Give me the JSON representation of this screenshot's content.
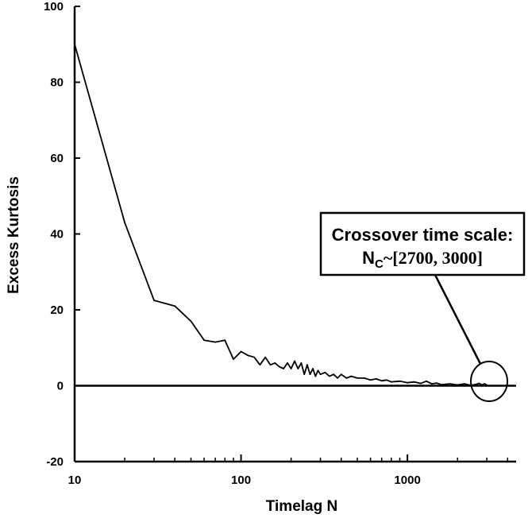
{
  "chart_data": {
    "type": "line",
    "title": "",
    "xlabel": "Timelag N",
    "ylabel": "Excess Kurtosis",
    "xscale": "log",
    "xlim": [
      10,
      4500
    ],
    "ylim": [
      -20,
      100
    ],
    "x_tick_labels": [
      "10",
      "100",
      "1000"
    ],
    "y_ticks": [
      -20,
      0,
      20,
      40,
      60,
      80,
      100
    ],
    "y_tick_labels": [
      "-20",
      "0",
      "20",
      "40",
      "60",
      "80",
      "100"
    ],
    "reference_line_y": 0,
    "series": [
      {
        "name": "Excess Kurtosis",
        "x": [
          10,
          20,
          30,
          40,
          50,
          60,
          70,
          80,
          90,
          100,
          110,
          120,
          130,
          140,
          150,
          160,
          170,
          180,
          190,
          200,
          210,
          220,
          230,
          240,
          250,
          260,
          270,
          280,
          290,
          300,
          320,
          340,
          360,
          380,
          400,
          430,
          460,
          500,
          550,
          600,
          650,
          700,
          750,
          800,
          900,
          1000,
          1100,
          1200,
          1300,
          1400,
          1500,
          1600,
          1800,
          2000,
          2200,
          2400,
          2600,
          2700,
          2800,
          2900,
          3000
        ],
        "y": [
          90,
          43,
          22.5,
          21,
          17,
          12,
          11.5,
          12,
          7,
          9,
          8,
          7.5,
          5.5,
          7.5,
          5.5,
          6,
          5,
          4.5,
          6,
          4.5,
          6.5,
          4.5,
          6,
          3,
          5.5,
          3,
          4.5,
          2.5,
          4,
          3,
          3.5,
          2.5,
          3,
          2,
          3,
          2,
          2.5,
          2,
          2,
          1.5,
          1.8,
          1.3,
          1.5,
          1,
          1.2,
          0.8,
          1,
          0.6,
          1.2,
          0.5,
          0.7,
          0.3,
          0.5,
          0.2,
          0.5,
          0.1,
          0.4,
          0.6,
          0.2,
          0.5,
          0.2
        ]
      }
    ],
    "annotation": {
      "line1": "Crossover time scale:",
      "line2_prefix": "N",
      "line2_subscript": "C",
      "line2_suffix": "~[2700, 3000]",
      "target_x_range": [
        2700,
        3000
      ],
      "target_y": 0
    }
  }
}
